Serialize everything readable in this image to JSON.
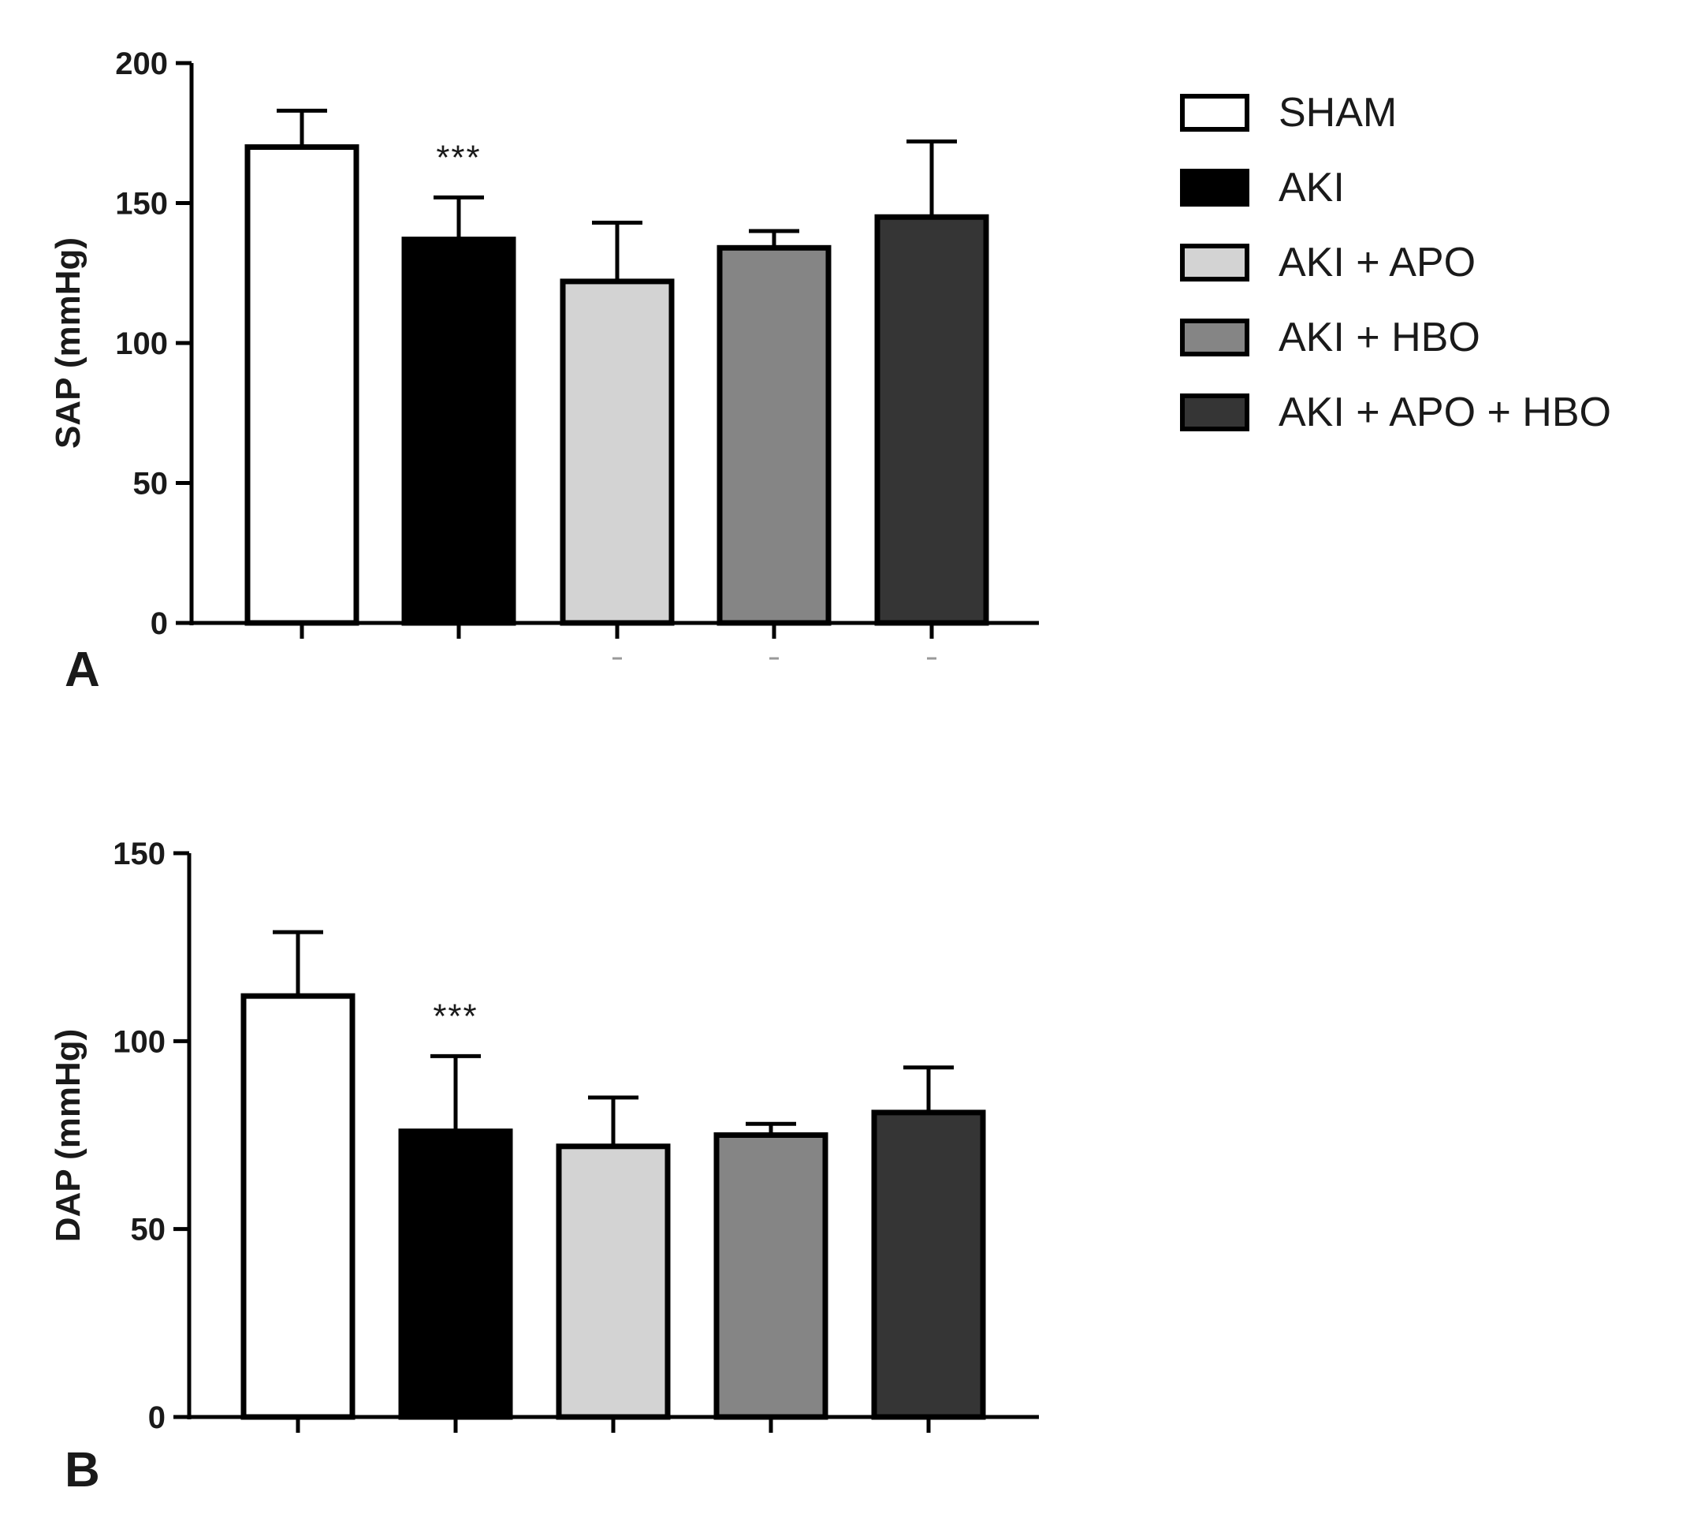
{
  "chart_data": [
    {
      "type": "bar",
      "panel_label": "A",
      "ylabel": "SAP (mmHg)",
      "ylim": [
        0,
        200
      ],
      "yticks": [
        0,
        50,
        100,
        150,
        200
      ],
      "categories": [
        "SHAM",
        "AKI",
        "AKI + APO",
        "AKI + HBO",
        "AKI + APO + HBO"
      ],
      "values": [
        170,
        137,
        122,
        134,
        145
      ],
      "errors": [
        13,
        15,
        21,
        6,
        27
      ],
      "annotations": [
        {
          "category": "AKI",
          "text": "***"
        }
      ]
    },
    {
      "type": "bar",
      "panel_label": "B",
      "ylabel": "DAP (mmHg)",
      "ylim": [
        0,
        150
      ],
      "yticks": [
        0,
        50,
        100,
        150
      ],
      "categories": [
        "SHAM",
        "AKI",
        "AKI + APO",
        "AKI + HBO",
        "AKI + APO + HBO"
      ],
      "values": [
        112,
        76,
        72,
        75,
        81
      ],
      "errors": [
        17,
        20,
        13,
        3,
        12
      ],
      "annotations": [
        {
          "category": "AKI",
          "text": "***"
        }
      ]
    }
  ],
  "legend": {
    "placement": "top-right",
    "items": [
      {
        "label": "SHAM",
        "color": "#ffffff"
      },
      {
        "label": "AKI",
        "color": "#000000"
      },
      {
        "label": "AKI + APO",
        "color": "#d3d3d3"
      },
      {
        "label": "AKI + HBO",
        "color": "#858585"
      },
      {
        "label": "AKI + APO + HBO",
        "color": "#353535"
      }
    ]
  }
}
